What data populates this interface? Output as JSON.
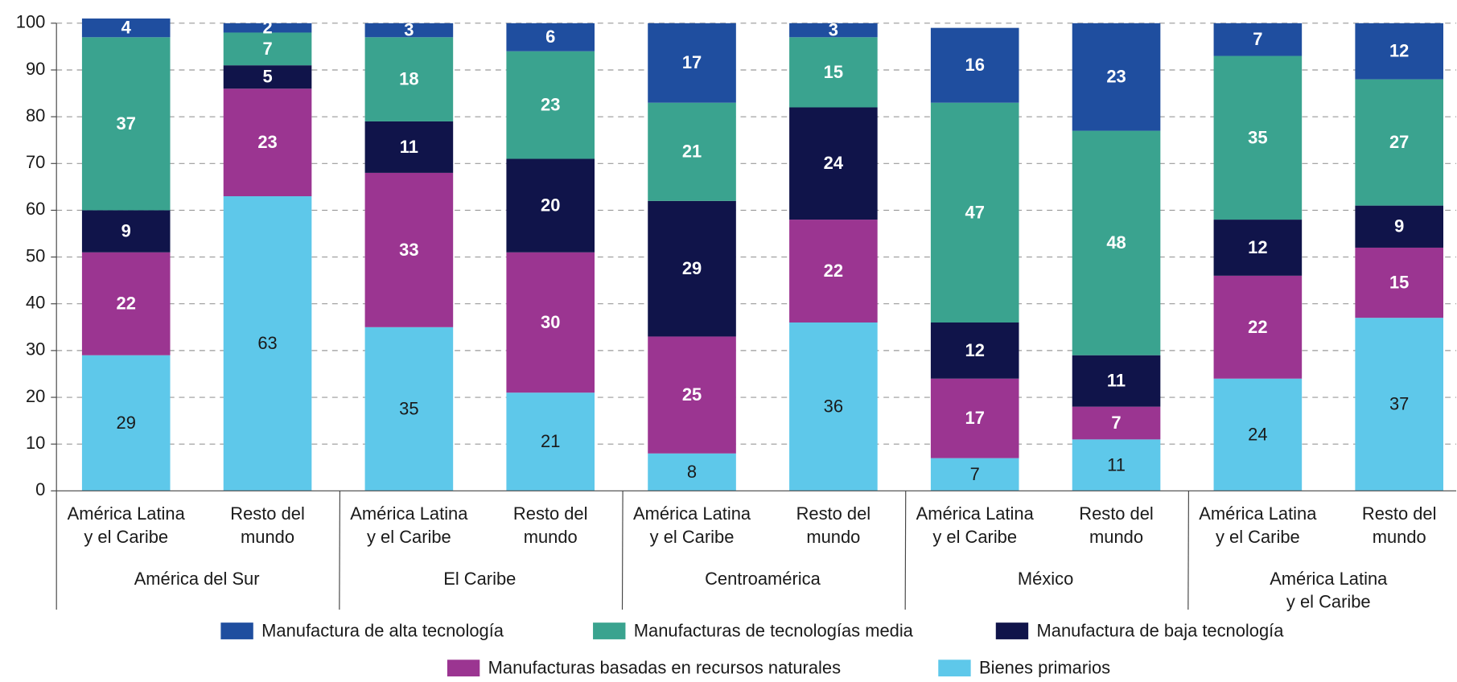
{
  "chart_data": {
    "type": "stacked_bar",
    "categories": [
      [
        "América Latina",
        "y el Caribe"
      ],
      [
        "Resto del",
        "mundo"
      ],
      [
        "América Latina",
        "y el Caribe"
      ],
      [
        "Resto del",
        "mundo"
      ],
      [
        "América Latina",
        "y el Caribe"
      ],
      [
        "Resto del",
        "mundo"
      ],
      [
        "América Latina",
        "y el Caribe"
      ],
      [
        "Resto del",
        "mundo"
      ],
      [
        "América Latina",
        "y el Caribe"
      ],
      [
        "Resto del",
        "mundo"
      ]
    ],
    "groups": [
      [
        "América del Sur"
      ],
      [
        "El Caribe"
      ],
      [
        "Centroamérica"
      ],
      [
        "México"
      ],
      [
        "América Latina",
        "y el Caribe"
      ]
    ],
    "series": [
      {
        "name": "Bienes primarios",
        "color": "#5ec8ea",
        "values": [
          29,
          63,
          35,
          21,
          8,
          36,
          7,
          11,
          24,
          37
        ]
      },
      {
        "name": "Manufacturas basadas en recursos naturales",
        "color": "#9b3591",
        "values": [
          22,
          23,
          33,
          30,
          25,
          22,
          17,
          7,
          22,
          15
        ]
      },
      {
        "name": "Manufactura de baja tecnología",
        "color": "#10144a",
        "values": [
          9,
          5,
          11,
          20,
          29,
          24,
          12,
          11,
          12,
          9
        ]
      },
      {
        "name": "Manufacturas de tecnologías media",
        "color": "#3aa38f",
        "values": [
          37,
          7,
          18,
          23,
          21,
          15,
          47,
          48,
          35,
          27
        ]
      },
      {
        "name": "Manufactura de alta tecnología",
        "color": "#1f4e9f",
        "values": [
          4,
          2,
          3,
          6,
          17,
          3,
          16,
          23,
          7,
          12
        ]
      }
    ],
    "ylim": [
      0,
      100
    ],
    "yticks": [
      0,
      10,
      20,
      30,
      40,
      50,
      60,
      70,
      80,
      90,
      100
    ],
    "grid": true
  }
}
